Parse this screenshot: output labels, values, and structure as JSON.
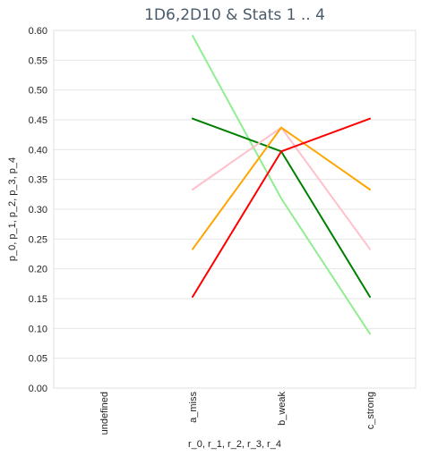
{
  "chart_data": {
    "type": "line",
    "title": "1D6,2D10 & Stats 1 .. 4",
    "xlabel": "r_0, r_1, r_2, r_3, r_4",
    "ylabel": "p_0, p_1, p_2, p_3, p_4",
    "categories": [
      "undefined",
      "a_miss",
      "b_weak",
      "c_strong"
    ],
    "ylim": [
      0,
      0.6
    ],
    "yticks": [
      "0.00",
      "0.05",
      "0.10",
      "0.15",
      "0.20",
      "0.25",
      "0.30",
      "0.35",
      "0.40",
      "0.45",
      "0.50",
      "0.55",
      "0.60"
    ],
    "grid": true,
    "legend": "none",
    "series": [
      {
        "color": "#90ee90",
        "values": [
          null,
          0.591,
          0.318,
          0.091
        ]
      },
      {
        "color": "#008000",
        "values": [
          null,
          0.452,
          0.397,
          0.153
        ]
      },
      {
        "color": "#ffc0cb",
        "values": [
          null,
          0.333,
          0.437,
          0.233
        ]
      },
      {
        "color": "#ffa500",
        "values": [
          null,
          0.233,
          0.437,
          0.333
        ]
      },
      {
        "color": "#ff0000",
        "values": [
          null,
          0.153,
          0.397,
          0.452
        ]
      }
    ]
  }
}
